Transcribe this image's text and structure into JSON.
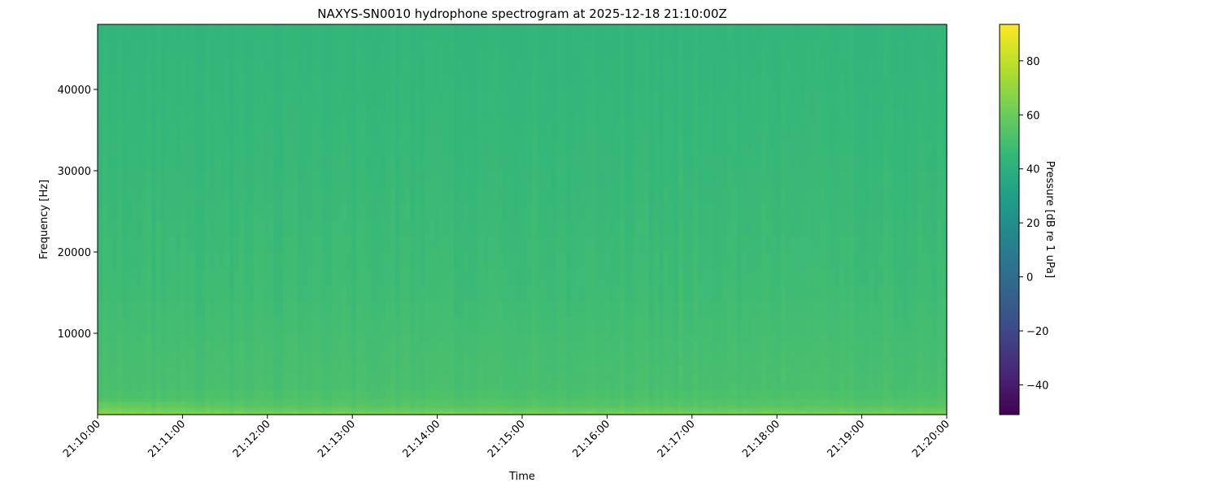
{
  "chart_data": {
    "type": "heatmap",
    "title": "NAXYS-SN0010 hydrophone spectrogram at 2025-12-18 21:10:00Z",
    "xlabel": "Time",
    "ylabel": "Frequency [Hz]",
    "x_ticks": [
      "21:10:00",
      "21:11:00",
      "21:12:00",
      "21:13:00",
      "21:14:00",
      "21:15:00",
      "21:16:00",
      "21:17:00",
      "21:18:00",
      "21:19:00",
      "21:20:00"
    ],
    "xlim": [
      "21:10:00",
      "21:20:00"
    ],
    "y_ticks": [
      10000,
      20000,
      30000,
      40000
    ],
    "ylim": [
      0,
      48000
    ],
    "colorbar": {
      "label": "Pressure [dB re 1 uPa]",
      "colormap": "viridis",
      "ticks": [
        -40,
        -20,
        0,
        20,
        40,
        60,
        80
      ],
      "range": [
        -51,
        93.5
      ]
    },
    "frequency_profile_db": {
      "frequency_hz": [
        0,
        300,
        1000,
        3000,
        8000,
        15000,
        30000,
        48000
      ],
      "level_db": [
        64,
        62,
        55,
        51,
        50,
        48,
        46,
        44
      ]
    },
    "low_frequency_band_trend_db": {
      "time": [
        "21:10:00",
        "21:12:00",
        "21:15:00",
        "21:18:00",
        "21:20:00"
      ],
      "level_db": [
        66,
        63,
        61,
        62,
        62
      ]
    }
  }
}
